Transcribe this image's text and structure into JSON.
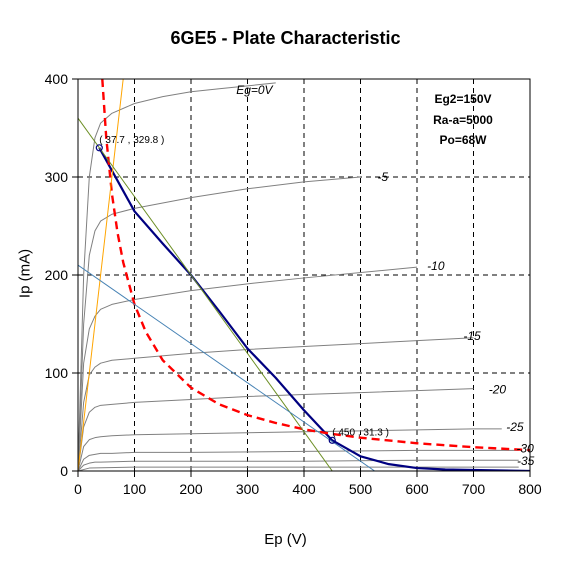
{
  "chart_data": {
    "type": "line",
    "title": "6GE5 - Plate Characteristic",
    "xlabel": "Ep (V)",
    "ylabel": "Ip (mA)",
    "xlim": [
      0,
      800
    ],
    "ylim": [
      0,
      400
    ],
    "xticks": [
      0,
      100,
      200,
      300,
      400,
      500,
      600,
      700,
      800
    ],
    "yticks": [
      0,
      100,
      200,
      300,
      400
    ],
    "grid": "dashed",
    "info_box": [
      "Eg2=150V",
      "Ra-a=5000",
      "Po=68W"
    ],
    "operating_points": [
      {
        "label": "( 37.7 , 329.8 )",
        "x": 37.7,
        "y": 329.8
      },
      {
        "label": "( 450 , 31.3 )",
        "x": 450,
        "y": 31.3
      }
    ],
    "series": [
      {
        "name": "Eg=0V",
        "color": "#808080",
        "x": [
          0,
          10,
          20,
          30,
          40,
          60,
          100,
          150,
          200,
          250,
          300,
          350
        ],
        "y": [
          0,
          200,
          300,
          340,
          355,
          365,
          375,
          382,
          387,
          390,
          393,
          396
        ]
      },
      {
        "name": "-5",
        "color": "#808080",
        "x": [
          0,
          10,
          20,
          30,
          40,
          60,
          100,
          200,
          300,
          400,
          500
        ],
        "y": [
          0,
          150,
          220,
          245,
          255,
          262,
          268,
          279,
          288,
          295,
          300
        ]
      },
      {
        "name": "-10",
        "color": "#808080",
        "x": [
          0,
          10,
          20,
          30,
          40,
          60,
          100,
          200,
          300,
          400,
          600
        ],
        "y": [
          0,
          110,
          145,
          158,
          165,
          170,
          175,
          184,
          191,
          197,
          208
        ]
      },
      {
        "name": "-15",
        "color": "#808080",
        "x": [
          0,
          10,
          20,
          30,
          40,
          60,
          100,
          200,
          300,
          400,
          500,
          600,
          700
        ],
        "y": [
          0,
          70,
          98,
          106,
          110,
          113,
          115,
          120,
          124,
          127,
          130,
          133,
          136
        ]
      },
      {
        "name": "-20",
        "color": "#808080",
        "x": [
          0,
          10,
          20,
          30,
          40,
          60,
          100,
          200,
          300,
          400,
          500,
          600,
          700
        ],
        "y": [
          0,
          45,
          60,
          65,
          67,
          68,
          70,
          73,
          76,
          78,
          80,
          82,
          84
        ]
      },
      {
        "name": "-25",
        "color": "#808080",
        "x": [
          0,
          10,
          20,
          30,
          40,
          60,
          100,
          200,
          300,
          400,
          500,
          600,
          700,
          750
        ],
        "y": [
          0,
          25,
          32,
          34,
          35,
          36,
          37,
          38,
          39,
          40,
          41,
          42,
          43,
          43
        ]
      },
      {
        "name": "-30",
        "color": "#808080",
        "x": [
          0,
          10,
          20,
          30,
          40,
          60,
          100,
          200,
          400,
          600,
          700,
          780
        ],
        "y": [
          0,
          12,
          16,
          17,
          18,
          18,
          19,
          19,
          20,
          21,
          21,
          21
        ]
      },
      {
        "name": "-35",
        "color": "#808080",
        "x": [
          0,
          10,
          20,
          30,
          40,
          100,
          200,
          400,
          600,
          780
        ],
        "y": [
          0,
          6,
          8,
          9,
          9,
          10,
          10,
          10,
          11,
          11
        ]
      },
      {
        "name": "",
        "color": "#808080",
        "x": [
          0,
          20,
          100,
          400,
          780
        ],
        "y": [
          0,
          3,
          4,
          4,
          4
        ]
      },
      {
        "name": "",
        "color": "#000080",
        "x": [
          37.7,
          100,
          150,
          200,
          250,
          300,
          350,
          400,
          450,
          500,
          550,
          600,
          650,
          700,
          750,
          800
        ],
        "y": [
          329.8,
          265,
          232,
          200,
          163,
          125,
          95,
          62,
          31.3,
          15,
          7,
          3,
          1.5,
          1,
          0.5,
          0
        ]
      },
      {
        "name": "",
        "color": "#ff0000",
        "dashed": true,
        "x": [
          43,
          50,
          60,
          70,
          80,
          100,
          120,
          150,
          200,
          250,
          300,
          350,
          400,
          450,
          500,
          600,
          700,
          800
        ],
        "y": [
          400,
          340,
          283,
          243,
          213,
          170,
          142,
          113,
          85,
          68,
          57,
          49,
          42.5,
          37.8,
          34,
          28.3,
          24.3,
          21.3
        ]
      },
      {
        "name": "",
        "color": "#ffa500",
        "x": [
          0,
          80
        ],
        "y": [
          0,
          400
        ]
      },
      {
        "name": "",
        "color": "#6b8e23",
        "x": [
          0,
          450
        ],
        "y": [
          360,
          0
        ]
      },
      {
        "name": "",
        "color": "#4682b4",
        "x": [
          0,
          525
        ],
        "y": [
          210,
          0
        ]
      }
    ],
    "curve_labels": [
      {
        "text": "Eg=0V",
        "x": 280,
        "y": 389
      },
      {
        "text": "-5",
        "x": 530,
        "y": 300
      },
      {
        "text": "-10",
        "x": 618,
        "y": 209
      },
      {
        "text": "-15",
        "x": 682,
        "y": 138
      },
      {
        "text": "-20",
        "x": 727,
        "y": 83
      },
      {
        "text": "-25",
        "x": 758,
        "y": 45
      },
      {
        "text": "-30",
        "x": 776,
        "y": 23
      },
      {
        "text": "-35",
        "x": 777,
        "y": 10
      }
    ]
  }
}
